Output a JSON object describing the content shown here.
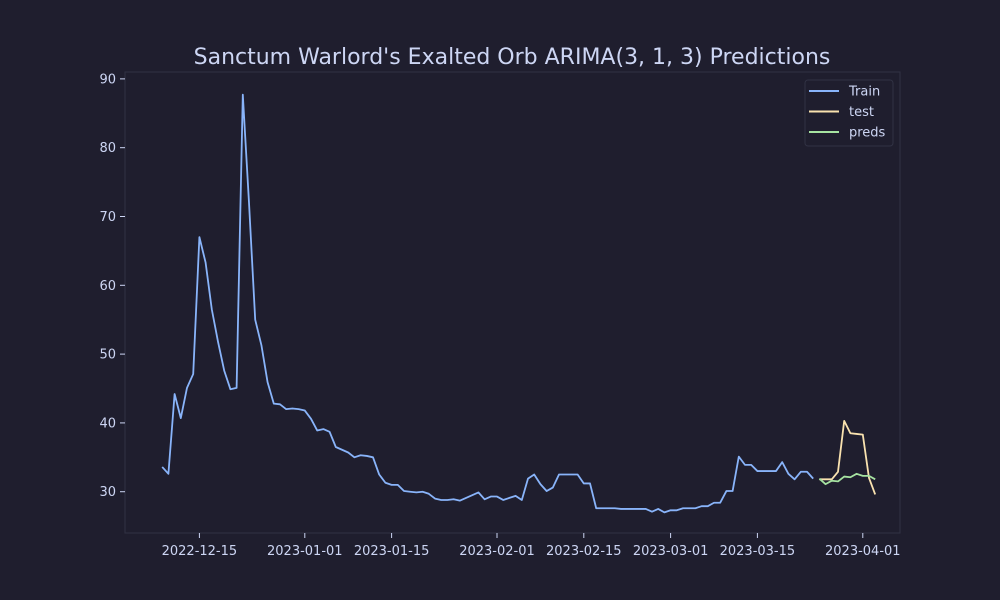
{
  "colors": {
    "background": "#1f1e2e",
    "text": "#cdd6f4",
    "axis": "#313244",
    "train": "#89b4fa",
    "test": "#f9e2af",
    "preds": "#a6e3a1",
    "legend_bg": "#1f1e2e"
  },
  "chart_data": {
    "type": "line",
    "title": "Sanctum Warlord's Exalted Orb ARIMA(3, 1, 3) Predictions",
    "xlabel": "",
    "ylabel": "",
    "x_axis_type": "date",
    "xlim": [
      "2022-12-03",
      "2023-04-07"
    ],
    "ylim": [
      24,
      91
    ],
    "x_ticks": [
      "2022-12-15",
      "2023-01-01",
      "2023-01-15",
      "2023-02-01",
      "2023-02-15",
      "2023-03-01",
      "2023-03-15",
      "2023-04-01"
    ],
    "y_ticks": [
      30,
      40,
      50,
      60,
      70,
      80,
      90
    ],
    "grid": false,
    "legend": "top-right",
    "series": [
      {
        "name": "Train",
        "color_key": "train",
        "points": [
          [
            "2022-12-09",
            33.6
          ],
          [
            "2022-12-10",
            32.6
          ],
          [
            "2022-12-11",
            44.2
          ],
          [
            "2022-12-12",
            40.7
          ],
          [
            "2022-12-13",
            45.1
          ],
          [
            "2022-12-14",
            47.1
          ],
          [
            "2022-12-15",
            67.0
          ],
          [
            "2022-12-16",
            63.3
          ],
          [
            "2022-12-17",
            56.5
          ],
          [
            "2022-12-18",
            51.8
          ],
          [
            "2022-12-19",
            47.6
          ],
          [
            "2022-12-20",
            44.9
          ],
          [
            "2022-12-21",
            45.1
          ],
          [
            "2022-12-22",
            87.7
          ],
          [
            "2022-12-23",
            72.0
          ],
          [
            "2022-12-24",
            55.0
          ],
          [
            "2022-12-25",
            51.3
          ],
          [
            "2022-12-26",
            45.9
          ],
          [
            "2022-12-27",
            42.8
          ],
          [
            "2022-12-28",
            42.7
          ],
          [
            "2022-12-29",
            42.0
          ],
          [
            "2022-12-30",
            42.1
          ],
          [
            "2022-12-31",
            42.0
          ],
          [
            "2023-01-01",
            41.8
          ],
          [
            "2023-01-02",
            40.6
          ],
          [
            "2023-01-03",
            38.9
          ],
          [
            "2023-01-04",
            39.1
          ],
          [
            "2023-01-05",
            38.7
          ],
          [
            "2023-01-06",
            36.5
          ],
          [
            "2023-01-07",
            36.1
          ],
          [
            "2023-01-08",
            35.7
          ],
          [
            "2023-01-09",
            35.0
          ],
          [
            "2023-01-10",
            35.3
          ],
          [
            "2023-01-11",
            35.2
          ],
          [
            "2023-01-12",
            35.0
          ],
          [
            "2023-01-13",
            32.5
          ],
          [
            "2023-01-14",
            31.3
          ],
          [
            "2023-01-15",
            31.0
          ],
          [
            "2023-01-16",
            31.0
          ],
          [
            "2023-01-17",
            30.1
          ],
          [
            "2023-01-18",
            30.0
          ],
          [
            "2023-01-19",
            29.9
          ],
          [
            "2023-01-20",
            30.0
          ],
          [
            "2023-01-21",
            29.7
          ],
          [
            "2023-01-22",
            29.0
          ],
          [
            "2023-01-23",
            28.8
          ],
          [
            "2023-01-24",
            28.8
          ],
          [
            "2023-01-25",
            28.9
          ],
          [
            "2023-01-26",
            28.7
          ],
          [
            "2023-01-27",
            29.1
          ],
          [
            "2023-01-28",
            29.5
          ],
          [
            "2023-01-29",
            29.9
          ],
          [
            "2023-01-30",
            28.9
          ],
          [
            "2023-01-31",
            29.3
          ],
          [
            "2023-02-01",
            29.3
          ],
          [
            "2023-02-02",
            28.8
          ],
          [
            "2023-02-03",
            29.1
          ],
          [
            "2023-02-04",
            29.4
          ],
          [
            "2023-02-05",
            28.8
          ],
          [
            "2023-02-06",
            31.9
          ],
          [
            "2023-02-07",
            32.5
          ],
          [
            "2023-02-08",
            31.1
          ],
          [
            "2023-02-09",
            30.1
          ],
          [
            "2023-02-10",
            30.6
          ],
          [
            "2023-02-11",
            32.5
          ],
          [
            "2023-02-12",
            32.5
          ],
          [
            "2023-02-13",
            32.5
          ],
          [
            "2023-02-14",
            32.5
          ],
          [
            "2023-02-15",
            31.2
          ],
          [
            "2023-02-16",
            31.2
          ],
          [
            "2023-02-17",
            27.6
          ],
          [
            "2023-02-18",
            27.6
          ],
          [
            "2023-02-19",
            27.6
          ],
          [
            "2023-02-20",
            27.6
          ],
          [
            "2023-02-21",
            27.5
          ],
          [
            "2023-02-22",
            27.5
          ],
          [
            "2023-02-23",
            27.5
          ],
          [
            "2023-02-24",
            27.5
          ],
          [
            "2023-02-25",
            27.5
          ],
          [
            "2023-02-26",
            27.1
          ],
          [
            "2023-02-27",
            27.5
          ],
          [
            "2023-02-28",
            27.0
          ],
          [
            "2023-03-01",
            27.3
          ],
          [
            "2023-03-02",
            27.3
          ],
          [
            "2023-03-03",
            27.6
          ],
          [
            "2023-03-04",
            27.6
          ],
          [
            "2023-03-05",
            27.6
          ],
          [
            "2023-03-06",
            27.9
          ],
          [
            "2023-03-07",
            27.9
          ],
          [
            "2023-03-08",
            28.4
          ],
          [
            "2023-03-09",
            28.4
          ],
          [
            "2023-03-10",
            30.1
          ],
          [
            "2023-03-11",
            30.1
          ],
          [
            "2023-03-12",
            35.1
          ],
          [
            "2023-03-13",
            33.9
          ],
          [
            "2023-03-14",
            33.9
          ],
          [
            "2023-03-15",
            33.0
          ],
          [
            "2023-03-16",
            33.0
          ],
          [
            "2023-03-17",
            33.0
          ],
          [
            "2023-03-18",
            33.0
          ],
          [
            "2023-03-19",
            34.3
          ],
          [
            "2023-03-20",
            32.6
          ],
          [
            "2023-03-21",
            31.8
          ],
          [
            "2023-03-22",
            32.9
          ],
          [
            "2023-03-23",
            32.9
          ],
          [
            "2023-03-24",
            31.9
          ]
        ]
      },
      {
        "name": "test",
        "color_key": "test",
        "points": [
          [
            "2023-03-25",
            31.8
          ],
          [
            "2023-03-26",
            31.8
          ],
          [
            "2023-03-27",
            31.8
          ],
          [
            "2023-03-28",
            32.9
          ],
          [
            "2023-03-29",
            40.3
          ],
          [
            "2023-03-30",
            38.5
          ],
          [
            "2023-03-31",
            38.4
          ],
          [
            "2023-04-01",
            38.3
          ],
          [
            "2023-04-02",
            32.0
          ],
          [
            "2023-04-03",
            29.6
          ]
        ]
      },
      {
        "name": "preds",
        "color_key": "preds",
        "points": [
          [
            "2023-03-25",
            31.9
          ],
          [
            "2023-03-26",
            31.1
          ],
          [
            "2023-03-27",
            31.6
          ],
          [
            "2023-03-28",
            31.5
          ],
          [
            "2023-03-29",
            32.2
          ],
          [
            "2023-03-30",
            32.1
          ],
          [
            "2023-03-31",
            32.6
          ],
          [
            "2023-04-01",
            32.3
          ],
          [
            "2023-04-02",
            32.3
          ],
          [
            "2023-04-03",
            31.8
          ]
        ]
      }
    ]
  }
}
